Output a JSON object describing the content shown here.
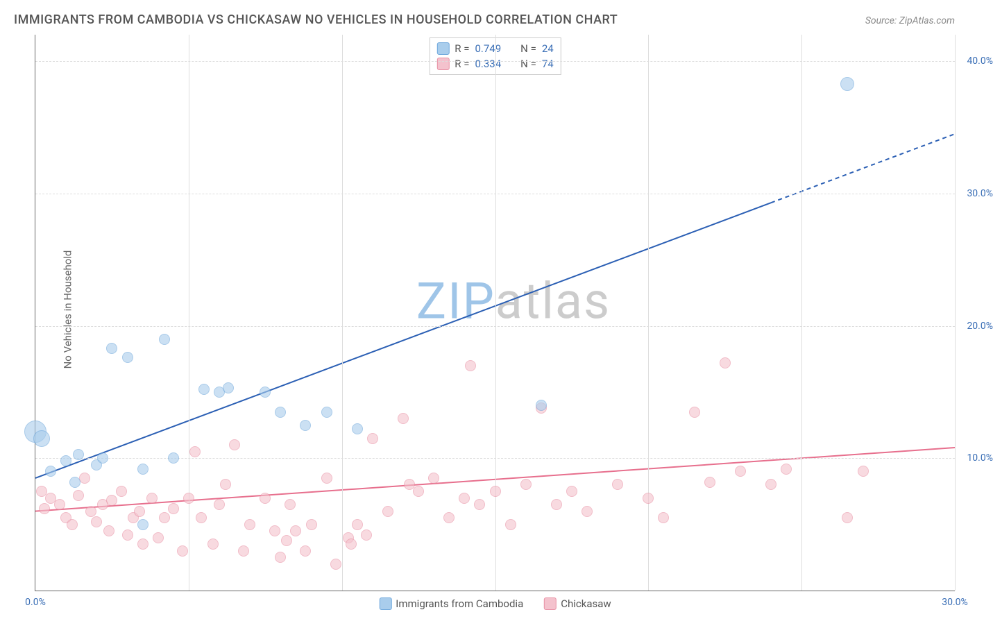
{
  "title": "IMMIGRANTS FROM CAMBODIA VS CHICKASAW NO VEHICLES IN HOUSEHOLD CORRELATION CHART",
  "source_label": "Source: ",
  "source_name": "ZipAtlas.com",
  "ylabel": "No Vehicles in Household",
  "watermark_a": "ZIP",
  "watermark_b": "atlas",
  "watermark_color_a": "#9fc5e8",
  "watermark_color_b": "#cccccc",
  "chart": {
    "type": "scatter",
    "background_color": "#ffffff",
    "grid_color": "#dddddd",
    "axis_color": "#666666",
    "xlim": [
      0,
      30
    ],
    "ylim": [
      0,
      42
    ],
    "xticks": [
      0,
      5,
      10,
      15,
      20,
      25,
      30
    ],
    "xtick_labels_shown": {
      "0": "0.0%",
      "30": "30.0%"
    },
    "yticks": [
      10,
      20,
      30,
      40
    ],
    "ytick_labels": {
      "10": "10.0%",
      "20": "20.0%",
      "30": "30.0%",
      "40": "40.0%"
    },
    "tick_label_color": "#3b6fb6",
    "marker_radius": 8,
    "marker_stroke_width": 1.5,
    "series": [
      {
        "name": "Immigrants from Cambodia",
        "fill": "#a9cdec",
        "stroke": "#6fa8dc",
        "trend_color": "#2b5fb4",
        "trend_width": 2,
        "r": 0.749,
        "n": 24,
        "trend": {
          "x1": 0,
          "y1": 8.5,
          "x2": 30,
          "y2": 34.5,
          "solid_until_x": 24
        },
        "points": [
          [
            0.0,
            12.0,
            16
          ],
          [
            0.2,
            11.5,
            12
          ],
          [
            0.5,
            9.0,
            8
          ],
          [
            1.0,
            9.8,
            8
          ],
          [
            1.4,
            10.3,
            8
          ],
          [
            1.3,
            8.2,
            8
          ],
          [
            2.0,
            9.5,
            8
          ],
          [
            2.2,
            10.0,
            8
          ],
          [
            2.5,
            18.3,
            8
          ],
          [
            3.0,
            17.6,
            8
          ],
          [
            3.5,
            9.2,
            8
          ],
          [
            3.5,
            5.0,
            8
          ],
          [
            4.2,
            19.0,
            8
          ],
          [
            4.5,
            10.0,
            8
          ],
          [
            5.5,
            15.2,
            8
          ],
          [
            6.0,
            15.0,
            8
          ],
          [
            6.3,
            15.3,
            8
          ],
          [
            7.5,
            15.0,
            8
          ],
          [
            8.0,
            13.5,
            8
          ],
          [
            8.8,
            12.5,
            8
          ],
          [
            9.5,
            13.5,
            8
          ],
          [
            10.5,
            12.2,
            8
          ],
          [
            16.5,
            14.0,
            8
          ],
          [
            26.5,
            38.3,
            10
          ]
        ]
      },
      {
        "name": "Chickasaw",
        "fill": "#f4c2cd",
        "stroke": "#e890a4",
        "trend_color": "#e76f8d",
        "trend_width": 2,
        "r": 0.334,
        "n": 74,
        "trend": {
          "x1": 0,
          "y1": 6.0,
          "x2": 30,
          "y2": 10.8,
          "solid_until_x": 30
        },
        "points": [
          [
            0.2,
            7.5,
            8
          ],
          [
            0.3,
            6.2,
            8
          ],
          [
            0.5,
            7.0,
            8
          ],
          [
            0.8,
            6.5,
            8
          ],
          [
            1.0,
            5.5,
            8
          ],
          [
            1.2,
            5.0,
            8
          ],
          [
            1.4,
            7.2,
            8
          ],
          [
            1.6,
            8.5,
            8
          ],
          [
            1.8,
            6.0,
            8
          ],
          [
            2.0,
            5.2,
            8
          ],
          [
            2.2,
            6.5,
            8
          ],
          [
            2.4,
            4.5,
            8
          ],
          [
            2.5,
            6.8,
            8
          ],
          [
            2.8,
            7.5,
            8
          ],
          [
            3.0,
            4.2,
            8
          ],
          [
            3.2,
            5.5,
            8
          ],
          [
            3.4,
            6.0,
            8
          ],
          [
            3.5,
            3.5,
            8
          ],
          [
            3.8,
            7.0,
            8
          ],
          [
            4.0,
            4.0,
            8
          ],
          [
            4.2,
            5.5,
            8
          ],
          [
            4.5,
            6.2,
            8
          ],
          [
            4.8,
            3.0,
            8
          ],
          [
            5.0,
            7.0,
            8
          ],
          [
            5.2,
            10.5,
            8
          ],
          [
            5.4,
            5.5,
            8
          ],
          [
            5.8,
            3.5,
            8
          ],
          [
            6.0,
            6.5,
            8
          ],
          [
            6.2,
            8.0,
            8
          ],
          [
            6.5,
            11.0,
            8
          ],
          [
            6.8,
            3.0,
            8
          ],
          [
            7.0,
            5.0,
            8
          ],
          [
            7.5,
            7.0,
            8
          ],
          [
            7.8,
            4.5,
            8
          ],
          [
            8.0,
            2.5,
            8
          ],
          [
            8.2,
            3.8,
            8
          ],
          [
            8.3,
            6.5,
            8
          ],
          [
            8.5,
            4.5,
            8
          ],
          [
            8.8,
            3.0,
            8
          ],
          [
            9.0,
            5.0,
            8
          ],
          [
            9.5,
            8.5,
            8
          ],
          [
            9.8,
            2.0,
            8
          ],
          [
            10.2,
            4.0,
            8
          ],
          [
            10.3,
            3.5,
            8
          ],
          [
            10.5,
            5.0,
            8
          ],
          [
            10.8,
            4.2,
            8
          ],
          [
            11.0,
            11.5,
            8
          ],
          [
            11.5,
            6.0,
            8
          ],
          [
            12.0,
            13.0,
            8
          ],
          [
            12.2,
            8.0,
            8
          ],
          [
            12.5,
            7.5,
            8
          ],
          [
            13.0,
            8.5,
            8
          ],
          [
            13.5,
            5.5,
            8
          ],
          [
            14.0,
            7.0,
            8
          ],
          [
            14.2,
            17.0,
            8
          ],
          [
            14.5,
            6.5,
            8
          ],
          [
            15.0,
            7.5,
            8
          ],
          [
            15.5,
            5.0,
            8
          ],
          [
            16.0,
            8.0,
            8
          ],
          [
            16.5,
            13.8,
            8
          ],
          [
            17.0,
            6.5,
            8
          ],
          [
            17.5,
            7.5,
            8
          ],
          [
            18.0,
            6.0,
            8
          ],
          [
            19.0,
            8.0,
            8
          ],
          [
            20.0,
            7.0,
            8
          ],
          [
            20.5,
            5.5,
            8
          ],
          [
            21.5,
            13.5,
            8
          ],
          [
            22.0,
            8.2,
            8
          ],
          [
            22.5,
            17.2,
            8
          ],
          [
            23.0,
            9.0,
            8
          ],
          [
            24.0,
            8.0,
            8
          ],
          [
            24.5,
            9.2,
            8
          ],
          [
            26.5,
            5.5,
            8
          ],
          [
            27.0,
            9.0,
            8
          ]
        ]
      }
    ],
    "legend_top": {
      "r_label": "R =",
      "n_label": "N =",
      "value_color": "#3b6fb6",
      "text_color": "#555555"
    }
  }
}
